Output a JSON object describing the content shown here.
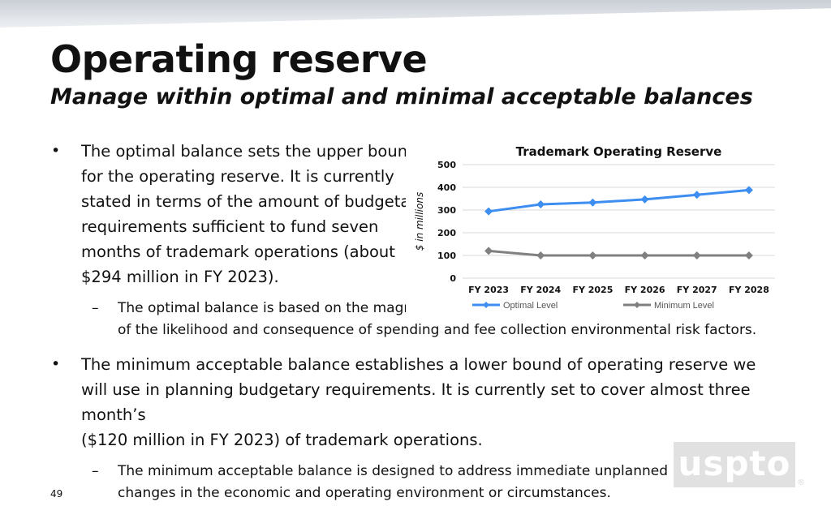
{
  "slide": {
    "title": "Operating reserve",
    "subtitle": "Manage within optimal and minimal acceptable balances",
    "bullet1": "The optimal balance sets the upper bound for the operating reserve. It is currently stated in terms of the amount of budgetary requirements sufficient to fund seven months of trademark operations (about $294 million in FY 2023).",
    "bullet1_sub_a": "The optimal balance is based on the magnitude",
    "bullet1_sub_b": "of the likelihood and consequence of spending and fee collection environmental risk factors.",
    "bullet2": "The minimum acceptable balance establishes a lower bound of operating reserve we will use in planning budgetary requirements. It is currently set to cover almost three month’s",
    "bullet2_b": "($120 million in FY 2023) of trademark operations.",
    "bullet2_sub": "The minimum acceptable balance is designed to address immediate unplanned changes in the economic and operating environment or circumstances.",
    "bullet_glyph": "•",
    "dash_glyph": "–",
    "page_number": "49",
    "logo_text": "uspto",
    "logo_mark": "®"
  },
  "chart_data": {
    "type": "line",
    "title": "Trademark Operating Reserve",
    "ylabel": "$ in millions",
    "xlabel": "",
    "categories": [
      "FY 2023",
      "FY 2024",
      "FY 2025",
      "FY 2026",
      "FY 2027",
      "FY 2028"
    ],
    "ylim": [
      0,
      500
    ],
    "yticks": [
      0,
      100,
      200,
      300,
      400,
      500
    ],
    "grid": true,
    "legend": "bottom",
    "series": [
      {
        "name": "Optimal Level",
        "values": [
          294,
          325,
          333,
          347,
          367,
          388
        ],
        "color": "#3d8ef0"
      },
      {
        "name": "Minimum Level",
        "values": [
          120,
          100,
          100,
          100,
          100,
          100
        ],
        "color": "#808080"
      }
    ]
  }
}
